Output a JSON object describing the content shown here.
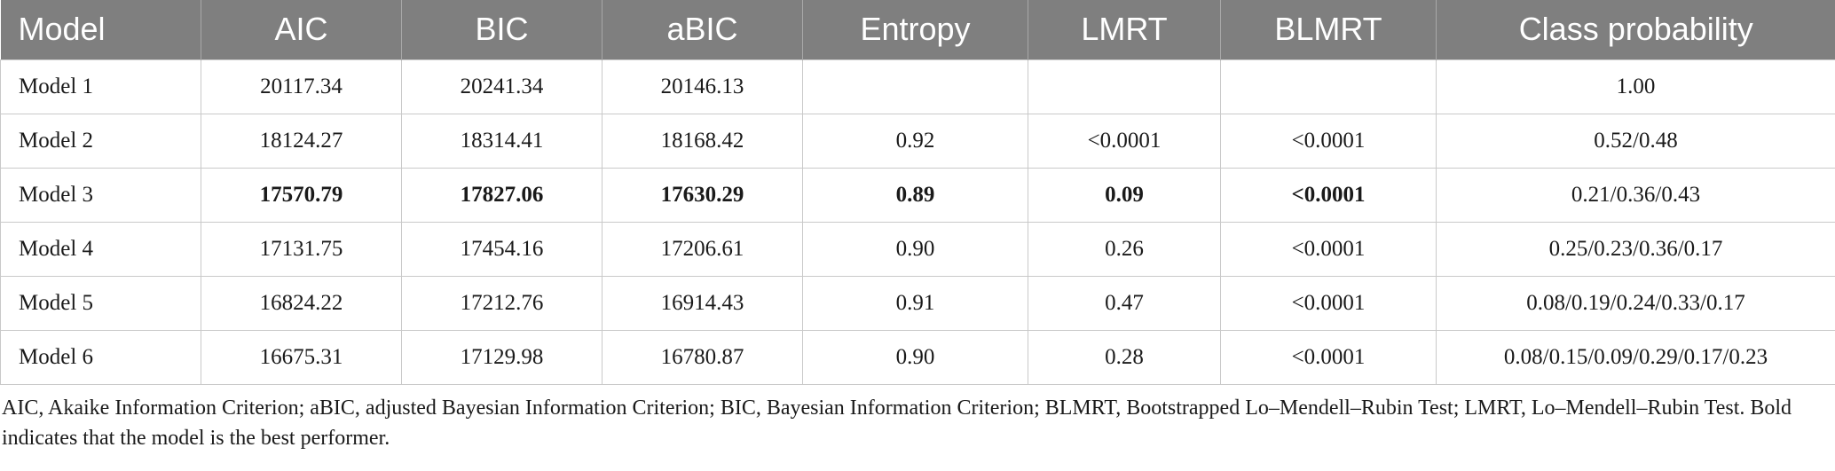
{
  "table": {
    "headers": [
      "Model",
      "AIC",
      "BIC",
      "aBIC",
      "Entropy",
      "LMRT",
      "BLMRT",
      "Class probability"
    ],
    "rows": [
      {
        "model": "Model 1",
        "aic": "20117.34",
        "bic": "20241.34",
        "abic": "20146.13",
        "entropy": "",
        "lmrt": "",
        "blmrt": "",
        "class_probability": "1.00",
        "bold": false
      },
      {
        "model": "Model 2",
        "aic": "18124.27",
        "bic": "18314.41",
        "abic": "18168.42",
        "entropy": "0.92",
        "lmrt": "<0.0001",
        "blmrt": "<0.0001",
        "class_probability": "0.52/0.48",
        "bold": false
      },
      {
        "model": "Model 3",
        "aic": "17570.79",
        "bic": "17827.06",
        "abic": "17630.29",
        "entropy": "0.89",
        "lmrt": "0.09",
        "blmrt": "<0.0001",
        "class_probability": "0.21/0.36/0.43",
        "bold": true
      },
      {
        "model": "Model 4",
        "aic": "17131.75",
        "bic": "17454.16",
        "abic": "17206.61",
        "entropy": "0.90",
        "lmrt": "0.26",
        "blmrt": "<0.0001",
        "class_probability": "0.25/0.23/0.36/0.17",
        "bold": false
      },
      {
        "model": "Model 5",
        "aic": "16824.22",
        "bic": "17212.76",
        "abic": "16914.43",
        "entropy": "0.91",
        "lmrt": "0.47",
        "blmrt": "<0.0001",
        "class_probability": "0.08/0.19/0.24/0.33/0.17",
        "bold": false
      },
      {
        "model": "Model 6",
        "aic": "16675.31",
        "bic": "17129.98",
        "abic": "16780.87",
        "entropy": "0.90",
        "lmrt": "0.28",
        "blmrt": "<0.0001",
        "class_probability": "0.08/0.15/0.09/0.29/0.17/0.23",
        "bold": false
      }
    ]
  },
  "footnote": "AIC, Akaike Information Criterion; aBIC, adjusted Bayesian Information Criterion; BIC, Bayesian Information Criterion; BLMRT, Bootstrapped Lo–Mendell–Rubin Test; LMRT, Lo–Mendell–Rubin Test. Bold indicates that the model is the best performer.",
  "colors": {
    "header_background": "#7f7f7f",
    "header_text": "#ffffff",
    "grid_lines": "#c9c9c9"
  }
}
